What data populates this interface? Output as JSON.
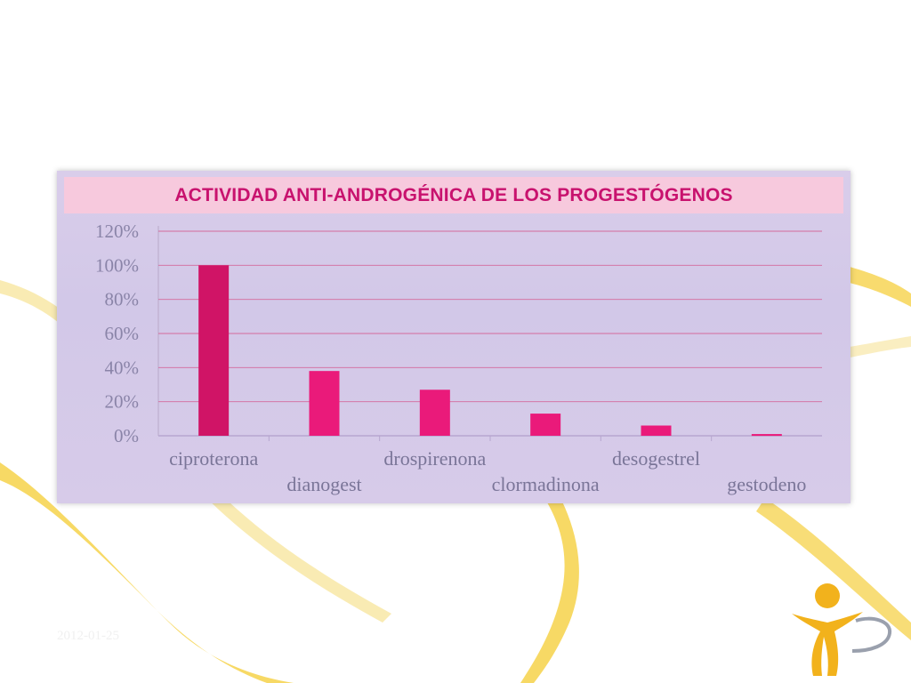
{
  "slide": {
    "footer_date": "2012-01-25",
    "colors": {
      "accent_yellow": "#f6d24a",
      "title_pink": "#c8126e",
      "bar_pink": "#d9146f",
      "card_lavender": "#d6cbe9"
    },
    "logo_icon": "person-figure-logo-icon"
  },
  "chart_data": {
    "type": "bar",
    "title": "ACTIVIDAD ANTI-ANDROGÉNICA DE LOS PROGESTÓGENOS",
    "categories": [
      "ciproterona",
      "dianogest",
      "drospirenona",
      "clormadinona",
      "desogestrel",
      "gestodeno"
    ],
    "values": [
      100,
      38,
      27,
      13,
      6,
      1
    ],
    "ylabel": "",
    "xlabel": "",
    "ylim": [
      0,
      120
    ],
    "yticks": [
      "0%",
      "20%",
      "40%",
      "60%",
      "80%",
      "100%",
      "120%"
    ],
    "grid": true,
    "value_unit": "%"
  }
}
